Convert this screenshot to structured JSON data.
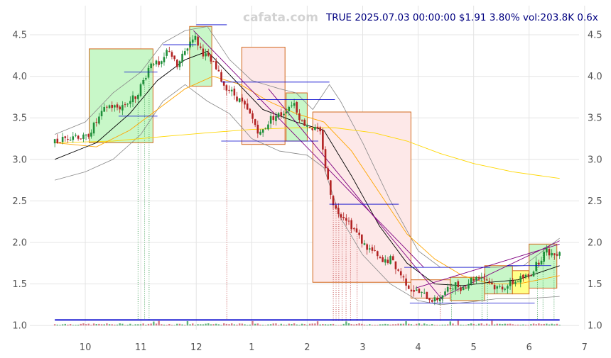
{
  "watermark": "cafata.com",
  "header": {
    "ticker": "TRUE",
    "datetime": "2025.07.03 00:00:00",
    "price": "$1.91",
    "change": "3.80%",
    "volume": "vol:203.8K",
    "ratio": "0.6x"
  },
  "colors": {
    "up": "#1f8f3a",
    "down": "#b22222",
    "ma_short": "#000000",
    "ma_mid": "#ffa500",
    "ma_long": "#ffd700",
    "band": "#888888",
    "trend": "#800080",
    "level": "#0000cd",
    "box_up_fill": "#c8f7c8",
    "box_down_fill": "#fde8e8",
    "box_neutral_fill": "#ffff88",
    "box_border": "#d2691e"
  },
  "chart_data": {
    "type": "candlestick",
    "title": "",
    "x_tick_labels": [
      "10",
      "11",
      "12",
      "1",
      "2",
      "3",
      "4",
      "5",
      "6",
      "7"
    ],
    "y_ticks": [
      1.0,
      1.5,
      2.0,
      2.5,
      3.0,
      3.5,
      4.0,
      4.5
    ],
    "y_tick_labels": [
      "1.0",
      "1.5",
      "2.0",
      "2.5",
      "3.0",
      "3.5",
      "4.0",
      "4.5"
    ],
    "ylim": [
      0.95,
      4.85
    ],
    "xlim": [
      0,
      9.9
    ],
    "x_start": 0.45,
    "x_end": 9.55,
    "grid": true,
    "close_path": [
      [
        0.45,
        3.2
      ],
      [
        0.8,
        3.3
      ],
      [
        1.0,
        3.25
      ],
      [
        1.2,
        3.45
      ],
      [
        1.4,
        3.65
      ],
      [
        1.6,
        3.62
      ],
      [
        1.9,
        3.75
      ],
      [
        2.05,
        3.95
      ],
      [
        2.2,
        4.2
      ],
      [
        2.35,
        4.1
      ],
      [
        2.5,
        4.35
      ],
      [
        2.65,
        4.1
      ],
      [
        2.8,
        4.3
      ],
      [
        2.95,
        4.5
      ],
      [
        3.1,
        4.3
      ],
      [
        3.3,
        4.15
      ],
      [
        3.5,
        3.9
      ],
      [
        3.65,
        3.8
      ],
      [
        3.8,
        3.7
      ],
      [
        4.0,
        3.5
      ],
      [
        4.15,
        3.3
      ],
      [
        4.35,
        3.5
      ],
      [
        4.55,
        3.55
      ],
      [
        4.75,
        3.7
      ],
      [
        4.9,
        3.45
      ],
      [
        5.1,
        3.38
      ],
      [
        5.25,
        3.3
      ],
      [
        5.35,
        2.8
      ],
      [
        5.5,
        2.4
      ],
      [
        5.7,
        2.3
      ],
      [
        5.85,
        2.15
      ],
      [
        6.05,
        1.95
      ],
      [
        6.2,
        1.88
      ],
      [
        6.35,
        1.75
      ],
      [
        6.5,
        1.8
      ],
      [
        6.6,
        1.7
      ],
      [
        6.7,
        1.6
      ],
      [
        6.85,
        1.45
      ],
      [
        7.0,
        1.4
      ],
      [
        7.15,
        1.35
      ],
      [
        7.3,
        1.3
      ],
      [
        7.5,
        1.4
      ],
      [
        7.65,
        1.5
      ],
      [
        7.8,
        1.45
      ],
      [
        7.95,
        1.55
      ],
      [
        8.1,
        1.6
      ],
      [
        8.25,
        1.55
      ],
      [
        8.4,
        1.45
      ],
      [
        8.6,
        1.48
      ],
      [
        8.8,
        1.55
      ],
      [
        9.0,
        1.6
      ],
      [
        9.15,
        1.75
      ],
      [
        9.3,
        1.9
      ],
      [
        9.45,
        1.85
      ],
      [
        9.55,
        1.91
      ]
    ],
    "moving_averages": [
      {
        "points": [
          [
            0.45,
            3.0
          ],
          [
            1.2,
            3.2
          ],
          [
            1.8,
            3.55
          ],
          [
            2.3,
            3.95
          ],
          [
            2.8,
            4.2
          ],
          [
            3.2,
            4.3
          ],
          [
            3.7,
            3.95
          ],
          [
            4.2,
            3.6
          ],
          [
            4.8,
            3.45
          ],
          [
            5.3,
            3.35
          ],
          [
            5.8,
            2.8
          ],
          [
            6.3,
            2.2
          ],
          [
            6.8,
            1.75
          ],
          [
            7.3,
            1.5
          ],
          [
            7.8,
            1.48
          ],
          [
            8.3,
            1.52
          ],
          [
            8.8,
            1.55
          ],
          [
            9.55,
            1.72
          ]
        ]
      },
      {
        "points": [
          [
            0.45,
            3.2
          ],
          [
            1.2,
            3.15
          ],
          [
            1.8,
            3.35
          ],
          [
            2.3,
            3.6
          ],
          [
            2.8,
            3.85
          ],
          [
            3.3,
            4.0
          ],
          [
            3.8,
            3.9
          ],
          [
            4.3,
            3.7
          ],
          [
            4.8,
            3.55
          ],
          [
            5.3,
            3.45
          ],
          [
            5.8,
            3.1
          ],
          [
            6.3,
            2.6
          ],
          [
            6.8,
            2.1
          ],
          [
            7.3,
            1.8
          ],
          [
            7.8,
            1.6
          ],
          [
            8.3,
            1.5
          ],
          [
            8.8,
            1.5
          ],
          [
            9.55,
            1.6
          ]
        ]
      },
      {
        "points": [
          [
            0.45,
            3.2
          ],
          [
            1.5,
            3.22
          ],
          [
            2.5,
            3.28
          ],
          [
            3.2,
            3.32
          ],
          [
            4.0,
            3.36
          ],
          [
            4.8,
            3.38
          ],
          [
            5.5,
            3.38
          ],
          [
            6.2,
            3.32
          ],
          [
            6.8,
            3.22
          ],
          [
            7.4,
            3.07
          ],
          [
            8.0,
            2.95
          ],
          [
            8.7,
            2.85
          ],
          [
            9.55,
            2.77
          ]
        ]
      }
    ],
    "bands": [
      {
        "points": [
          [
            0.45,
            3.3
          ],
          [
            1.0,
            3.45
          ],
          [
            1.5,
            3.8
          ],
          [
            2.0,
            4.05
          ],
          [
            2.4,
            4.4
          ],
          [
            2.8,
            4.55
          ],
          [
            3.2,
            4.6
          ],
          [
            3.6,
            4.2
          ],
          [
            4.0,
            3.95
          ],
          [
            4.5,
            3.85
          ],
          [
            4.8,
            3.8
          ],
          [
            5.1,
            3.6
          ],
          [
            5.4,
            3.9
          ],
          [
            5.6,
            3.7
          ],
          [
            6.0,
            3.2
          ],
          [
            6.5,
            2.5
          ],
          [
            7.0,
            1.9
          ],
          [
            7.4,
            1.7
          ],
          [
            7.9,
            1.7
          ],
          [
            8.4,
            1.7
          ],
          [
            8.9,
            1.72
          ],
          [
            9.55,
            2.05
          ]
        ]
      },
      {
        "points": [
          [
            0.45,
            2.75
          ],
          [
            1.0,
            2.85
          ],
          [
            1.5,
            3.0
          ],
          [
            2.0,
            3.3
          ],
          [
            2.4,
            3.7
          ],
          [
            2.8,
            3.9
          ],
          [
            3.2,
            3.7
          ],
          [
            3.6,
            3.55
          ],
          [
            4.0,
            3.25
          ],
          [
            4.5,
            3.1
          ],
          [
            5.0,
            3.05
          ],
          [
            5.3,
            2.9
          ],
          [
            5.6,
            2.3
          ],
          [
            6.0,
            1.85
          ],
          [
            6.5,
            1.5
          ],
          [
            7.0,
            1.3
          ],
          [
            7.4,
            1.25
          ],
          [
            7.9,
            1.28
          ],
          [
            8.4,
            1.32
          ],
          [
            8.9,
            1.32
          ],
          [
            9.55,
            1.35
          ]
        ]
      }
    ],
    "trend_lines": [
      {
        "from": [
          2.95,
          4.55
        ],
        "to": [
          7.1,
          1.7
        ]
      },
      {
        "from": [
          4.3,
          3.85
        ],
        "to": [
          7.45,
          1.3
        ]
      },
      {
        "from": [
          7.3,
          1.3
        ],
        "to": [
          9.55,
          2.02
        ]
      },
      {
        "from": [
          6.95,
          1.45
        ],
        "to": [
          9.55,
          1.98
        ]
      }
    ],
    "levels": [
      {
        "from": 1.7,
        "to": 2.3,
        "y": 4.05
      },
      {
        "from": 1.6,
        "to": 2.3,
        "y": 3.52
      },
      {
        "from": 2.4,
        "to": 3.0,
        "y": 4.38
      },
      {
        "from": 3.0,
        "to": 3.55,
        "y": 4.62
      },
      {
        "from": 3.45,
        "to": 5.4,
        "y": 3.93
      },
      {
        "from": 3.45,
        "to": 5.2,
        "y": 3.22
      },
      {
        "from": 4.1,
        "to": 5.5,
        "y": 3.72
      },
      {
        "from": 5.4,
        "to": 6.65,
        "y": 2.46
      },
      {
        "from": 6.75,
        "to": 8.3,
        "y": 1.7
      },
      {
        "from": 6.85,
        "to": 9.1,
        "y": 1.27
      },
      {
        "from": 8.6,
        "to": 9.4,
        "y": 1.72
      }
    ],
    "boxes": [
      {
        "x0": 1.07,
        "x1": 2.22,
        "y0": 3.2,
        "y1": 4.33,
        "kind": "up"
      },
      {
        "x0": 2.88,
        "x1": 3.28,
        "y0": 3.88,
        "y1": 4.6,
        "kind": "up"
      },
      {
        "x0": 3.82,
        "x1": 4.6,
        "y0": 3.18,
        "y1": 4.35,
        "kind": "down"
      },
      {
        "x0": 4.62,
        "x1": 5.0,
        "y0": 3.22,
        "y1": 3.8,
        "kind": "up"
      },
      {
        "x0": 5.1,
        "x1": 6.87,
        "y0": 1.52,
        "y1": 3.57,
        "kind": "down"
      },
      {
        "x0": 6.87,
        "x1": 7.58,
        "y0": 1.33,
        "y1": 1.55,
        "kind": "down"
      },
      {
        "x0": 7.58,
        "x1": 8.2,
        "y0": 1.3,
        "y1": 1.58,
        "kind": "up"
      },
      {
        "x0": 8.2,
        "x1": 8.7,
        "y0": 1.38,
        "y1": 1.72,
        "kind": "up"
      },
      {
        "x0": 8.7,
        "x1": 9.0,
        "y0": 1.38,
        "y1": 1.66,
        "kind": "neutral"
      },
      {
        "x0": 9.0,
        "x1": 9.5,
        "y0": 1.45,
        "y1": 1.98,
        "kind": "up"
      }
    ],
    "markers": [
      {
        "x": 1.95,
        "color": "up"
      },
      {
        "x": 2.07,
        "color": "up"
      },
      {
        "x": 2.15,
        "color": "up"
      },
      {
        "x": 3.55,
        "color": "down"
      },
      {
        "x": 5.47,
        "color": "down"
      },
      {
        "x": 5.52,
        "color": "down"
      },
      {
        "x": 5.57,
        "color": "down"
      },
      {
        "x": 5.63,
        "color": "down"
      },
      {
        "x": 5.7,
        "color": "down"
      },
      {
        "x": 5.78,
        "color": "down"
      },
      {
        "x": 5.9,
        "color": "down"
      },
      {
        "x": 7.4,
        "color": "down"
      },
      {
        "x": 7.6,
        "color": "up"
      },
      {
        "x": 8.15,
        "color": "up"
      },
      {
        "x": 8.25,
        "color": "up"
      },
      {
        "x": 9.15,
        "color": "up"
      },
      {
        "x": 9.25,
        "color": "up"
      },
      {
        "x": 9.45,
        "color": "up"
      }
    ]
  }
}
